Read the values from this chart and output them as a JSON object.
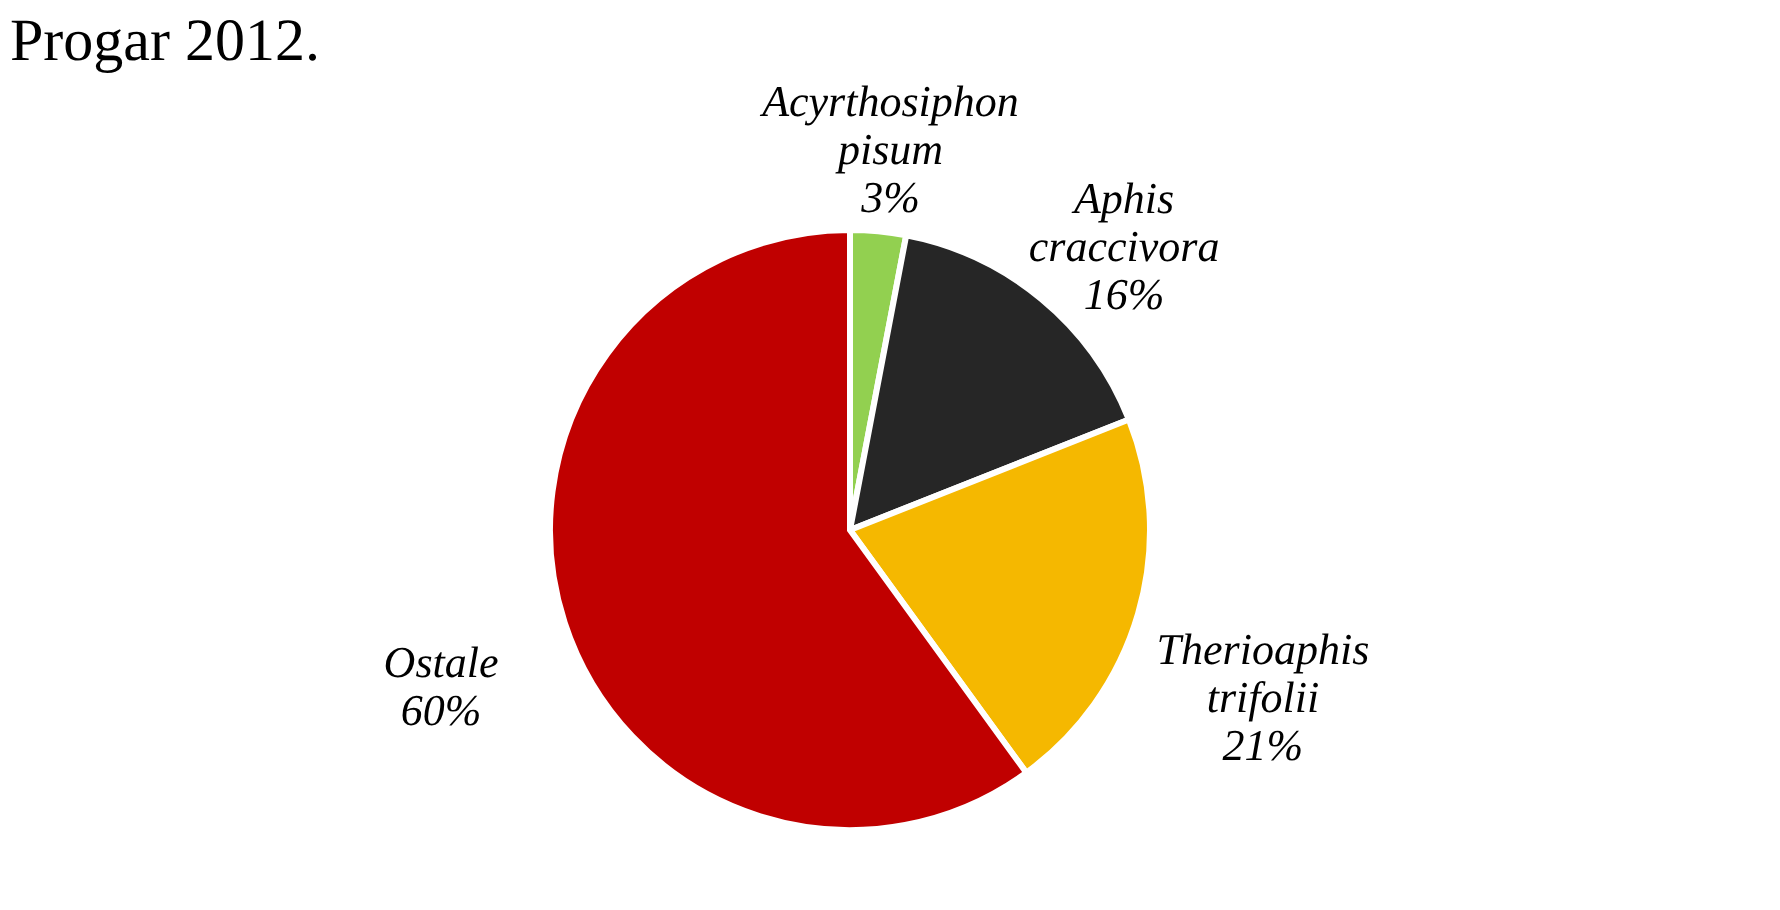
{
  "chart_data": {
    "type": "pie",
    "title": "Progar 2012.",
    "categories": [
      "Acyrthosiphon pisum",
      "Aphis craccivora",
      "Therioaphis trifolii",
      "Ostale"
    ],
    "values": [
      3,
      16,
      21,
      60
    ],
    "value_labels": [
      "3%",
      "16%",
      "21%",
      "60%"
    ],
    "colors": [
      "#92d050",
      "#262626",
      "#f5b800",
      "#c00000"
    ]
  }
}
